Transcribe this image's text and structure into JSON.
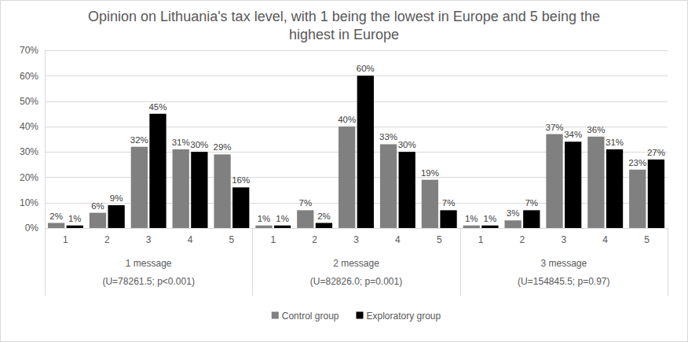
{
  "chart_data": {
    "type": "bar",
    "title": "Opinion on Lithuania's tax level, with 1 being the lowest in Europe and 5 being the highest in Europe",
    "categories": [
      "1",
      "2",
      "3",
      "4",
      "5",
      "1",
      "2",
      "3",
      "4",
      "5",
      "1",
      "2",
      "3",
      "4",
      "5"
    ],
    "groups": [
      {
        "label": "1 message",
        "note": "(U=78261.5; p<0.001)"
      },
      {
        "label": "2 message",
        "note": "(U=82826.0; p=0.001)"
      },
      {
        "label": "3 message",
        "note": "(U=154845.5; p=0.97)"
      }
    ],
    "series": [
      {
        "name": "Control group",
        "color": "#808080",
        "values": [
          2,
          6,
          32,
          31,
          29,
          1,
          7,
          40,
          33,
          19,
          1,
          3,
          37,
          36,
          23
        ],
        "value_labels": [
          "2%",
          "6%",
          "32%",
          "31%",
          "29%",
          "1%",
          "7%",
          "40%",
          "33%",
          "19%",
          "1%",
          "3%",
          "37%",
          "36%",
          "23%"
        ]
      },
      {
        "name": "Exploratory group",
        "color": "#000000",
        "values": [
          1,
          9,
          45,
          30,
          16,
          1,
          2,
          60,
          30,
          7,
          1,
          7,
          34,
          31,
          27
        ],
        "value_labels": [
          "1%",
          "9%",
          "45%",
          "30%",
          "16%",
          "1%",
          "2%",
          "60%",
          "30%",
          "7%",
          "1%",
          "7%",
          "34%",
          "31%",
          "27%"
        ]
      }
    ],
    "ylim": [
      0,
      70
    ],
    "yticks": [
      {
        "value": 0,
        "label": "0%"
      },
      {
        "value": 10,
        "label": "10%"
      },
      {
        "value": 20,
        "label": "20%"
      },
      {
        "value": 30,
        "label": "30%"
      },
      {
        "value": 40,
        "label": "40%"
      },
      {
        "value": 50,
        "label": "50%"
      },
      {
        "value": 60,
        "label": "60%"
      },
      {
        "value": 70,
        "label": "70%"
      }
    ],
    "grid": true,
    "legend": "bottom",
    "data_labels": true
  }
}
